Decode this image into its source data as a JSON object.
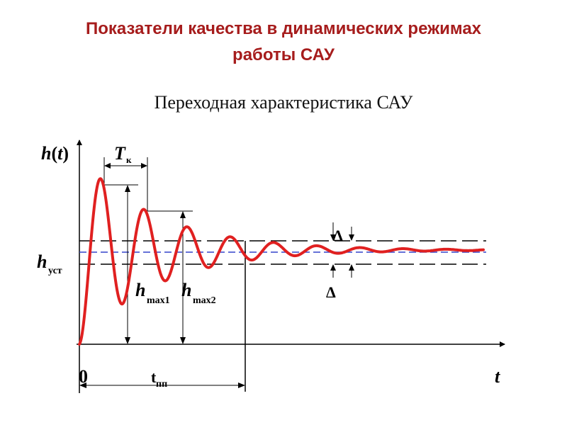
{
  "title_line1": "Показатели качества в динамических режимах",
  "title_line2": "работы САУ",
  "subtitle": "Переходная характеристика САУ",
  "labels": {
    "y_axis_main": "h(t)",
    "x_axis": "t",
    "origin": "0",
    "period_main": "T",
    "period_sub": "к",
    "steady_main": "h",
    "steady_sub": "уст",
    "hmax1_main": "h",
    "hmax1_sub": "max1",
    "hmax2_main": "h",
    "hmax2_sub": "max2",
    "delta_upper": "Δ",
    "delta_lower": "Δ",
    "settling_main": "t",
    "settling_sub": "пп"
  },
  "colors": {
    "title": "#a61c1c",
    "curve": "#e02020",
    "steady_line": "#3344cc",
    "axes": "#000000"
  }
}
